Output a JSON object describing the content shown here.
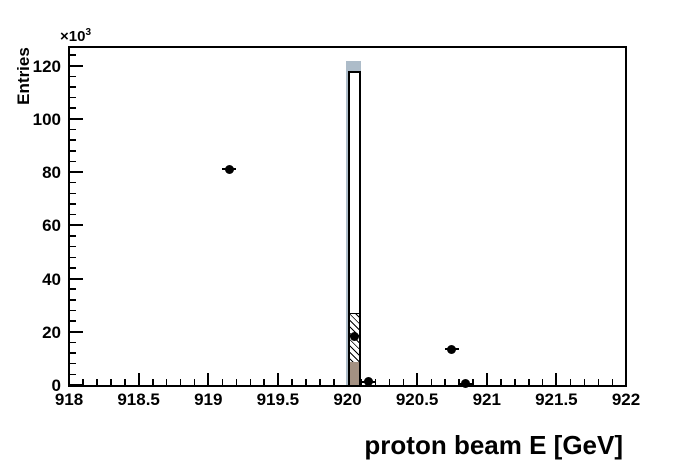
{
  "figure": {
    "ylabel": "Entries",
    "scale_base": "×10",
    "scale_exp": "3",
    "xtitle": "proton beam E [GeV]"
  },
  "chart_data": {
    "type": "bar",
    "subtype": "ROOT-style histogram with overlaid scatter points",
    "title": "",
    "xlabel": "proton beam E [GeV]",
    "ylabel": "Entries",
    "y_unit_scale_label": "×10^3",
    "xlim": [
      918,
      922
    ],
    "ylim_thousands": [
      0,
      127
    ],
    "grid": false,
    "legend": null,
    "x_ticks": [
      {
        "value": 918,
        "label": "918"
      },
      {
        "value": 918.5,
        "label": "918.5"
      },
      {
        "value": 919,
        "label": "919"
      },
      {
        "value": 919.5,
        "label": "919.5"
      },
      {
        "value": 920,
        "label": "920"
      },
      {
        "value": 920.5,
        "label": "920.5"
      },
      {
        "value": 921,
        "label": "921"
      },
      {
        "value": 921.5,
        "label": "921.5"
      },
      {
        "value": 922,
        "label": "922"
      }
    ],
    "x_minor_step": 0.1,
    "y_ticks": [
      {
        "value": 0,
        "label": "0"
      },
      {
        "value": 20,
        "label": "20"
      },
      {
        "value": 40,
        "label": "40"
      },
      {
        "value": 60,
        "label": "60"
      },
      {
        "value": 80,
        "label": "80"
      },
      {
        "value": 100,
        "label": "100"
      },
      {
        "value": 120,
        "label": "120"
      }
    ],
    "y_minor_step": 4,
    "histograms": [
      {
        "name": "gray-blue-filled",
        "style": "solid",
        "fill_color": "#adbcc9",
        "bins": [
          {
            "x0": 920.0,
            "x1": 920.1,
            "height_thousands": 121.8
          }
        ]
      },
      {
        "name": "white-outlined",
        "style": "outline",
        "fill_color": "#ffffff",
        "line_color": "#000000",
        "bins": [
          {
            "x0": 920.0,
            "x1": 920.1,
            "height_thousands": 118.0
          }
        ]
      },
      {
        "name": "hatched",
        "style": "hatch-diagonal",
        "line_color": "#000000",
        "bins": [
          {
            "x0": 920.0,
            "x1": 920.1,
            "height_thousands": 27.0
          }
        ]
      },
      {
        "name": "tan-filled",
        "style": "solid",
        "fill_color": "#a49182",
        "bins": [
          {
            "x0": 920.0,
            "x1": 920.1,
            "height_thousands": 8.8
          }
        ]
      }
    ],
    "points": {
      "marker": "filled-circle",
      "color": "#000000",
      "xerr": 0.05,
      "data_thousands": [
        [
          919.15,
          81.0
        ],
        [
          920.05,
          18.3
        ],
        [
          920.15,
          1.2
        ],
        [
          920.75,
          13.5
        ],
        [
          920.85,
          0.5
        ]
      ]
    }
  }
}
